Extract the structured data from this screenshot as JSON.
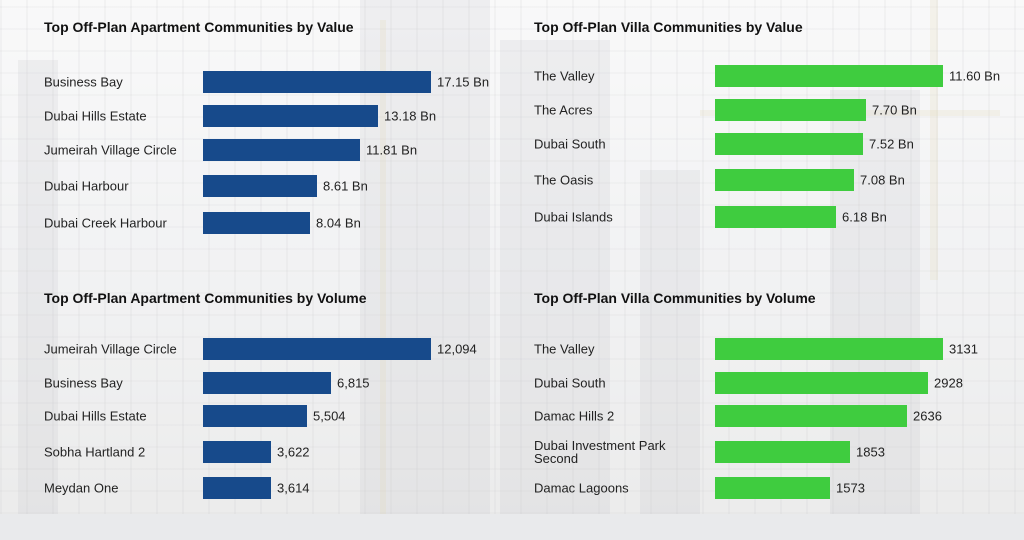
{
  "colors": {
    "apartment": "#174a8b",
    "villa": "#3fcc3f"
  },
  "chart_data": [
    {
      "type": "bar",
      "orientation": "horizontal",
      "title": "Top Off-Plan Apartment Communities by Value",
      "color": "#174a8b",
      "categories": [
        "Business Bay",
        "Dubai Hills Estate",
        "Jumeirah Village Circle",
        "Dubai Harbour",
        "Dubai Creek Harbour"
      ],
      "values": [
        17.15,
        13.18,
        11.81,
        8.61,
        8.04
      ],
      "value_labels": [
        "17.15 Bn",
        "13.18 Bn",
        "11.81 Bn",
        "8.61 Bn",
        "8.04 Bn"
      ]
    },
    {
      "type": "bar",
      "orientation": "horizontal",
      "title": "Top Off-Plan Villa Communities by Value",
      "color": "#3fcc3f",
      "categories": [
        "The Valley",
        "The Acres",
        "Dubai South",
        "The Oasis",
        "Dubai Islands"
      ],
      "values": [
        11.6,
        7.7,
        7.52,
        7.08,
        6.18
      ],
      "value_labels": [
        "11.60 Bn",
        "7.70 Bn",
        "7.52 Bn",
        "7.08 Bn",
        "6.18 Bn"
      ]
    },
    {
      "type": "bar",
      "orientation": "horizontal",
      "title": "Top Off-Plan Apartment Communities by Volume",
      "color": "#174a8b",
      "categories": [
        "Jumeirah Village Circle",
        "Business Bay",
        "Dubai Hills Estate",
        "Sobha Hartland 2",
        "Meydan One"
      ],
      "values": [
        12094,
        6815,
        5504,
        3622,
        3614
      ],
      "value_labels": [
        "12,094",
        "6,815",
        "5,504",
        "3,622",
        "3,614"
      ]
    },
    {
      "type": "bar",
      "orientation": "horizontal",
      "title": "Top Off-Plan Villa Communities by Volume",
      "color": "#3fcc3f",
      "categories": [
        "The Valley",
        "Dubai South",
        "Damac Hills 2",
        "Dubai Investment Park Second",
        "Damac Lagoons"
      ],
      "values": [
        3131,
        2928,
        2636,
        1853,
        1573
      ],
      "value_labels": [
        "3131",
        "2928",
        "2636",
        "1853",
        "1573"
      ]
    }
  ]
}
